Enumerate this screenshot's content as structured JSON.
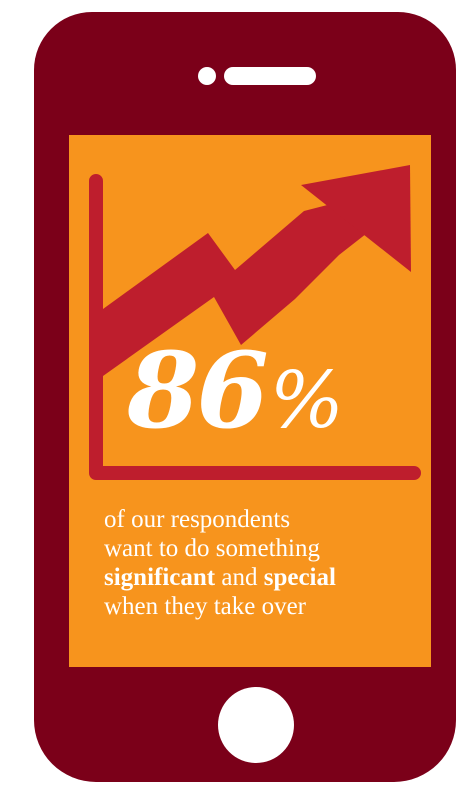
{
  "stat": {
    "value": "86",
    "unit": "%"
  },
  "caption": {
    "line1": "of our respondents",
    "line2": "want to do something",
    "word_significant": "significant",
    "word_and": "and",
    "word_special": "special",
    "line4": "when they take over"
  },
  "colors": {
    "phone_body": "#7b0019",
    "screen": "#f7941d",
    "arrow_and_axes": "#be1e2d",
    "text": "#ffffff"
  },
  "icons": {
    "trend": "rising-zigzag-arrow-icon",
    "home": "home-button-icon"
  }
}
